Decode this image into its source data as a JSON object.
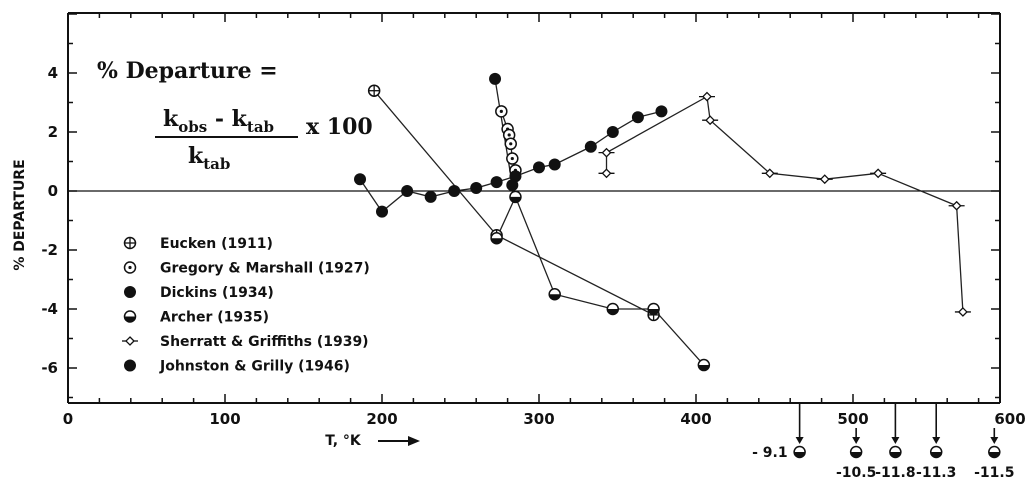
{
  "chart_data": {
    "type": "scatter",
    "title": "",
    "xlabel": "T, °K",
    "ylabel": "% DEPARTURE",
    "xlim": [
      0,
      600
    ],
    "ylim": [
      -7,
      6
    ],
    "xticks": [
      0,
      100,
      200,
      300,
      400,
      500,
      600
    ],
    "yticks": [
      4,
      2,
      0,
      -2,
      -4,
      -6
    ],
    "formula": {
      "lhs": "% Departure =",
      "numerator_k1": "k",
      "numerator_sub1": "obs",
      "minus": " - ",
      "numerator_k2": "k",
      "numerator_sub2": "tab",
      "denominator_k": "k",
      "denominator_sub": "tab",
      "multiplier": "x 100"
    },
    "series": [
      {
        "name": "Eucken (1911)",
        "marker": "crossed-circle",
        "x": [
          195,
          273,
          373
        ],
        "y": [
          3.4,
          -1.5,
          -4.2
        ]
      },
      {
        "name": "Gregory & Marshall (1927)",
        "marker": "dotted-circle",
        "x": [
          276,
          280,
          281,
          282,
          283,
          285
        ],
        "y": [
          2.7,
          2.1,
          1.9,
          1.6,
          1.1,
          0.7
        ]
      },
      {
        "name": "Dickins (1934)",
        "marker": "filled-circle",
        "x": [
          186,
          200,
          216,
          231,
          246,
          260,
          273,
          285,
          300,
          310,
          333,
          347,
          363,
          378
        ],
        "y": [
          0.4,
          -0.7,
          0.0,
          -0.2,
          0.0,
          0.1,
          0.3,
          0.5,
          0.8,
          0.9,
          1.5,
          2.0,
          2.5,
          2.7
        ]
      },
      {
        "name": "Archer (1935)",
        "marker": "half-filled-circle",
        "x": [
          273,
          285,
          310,
          347,
          373,
          405
        ],
        "y": [
          -1.6,
          -0.2,
          -3.5,
          -4.0,
          -4.0,
          -5.9
        ]
      },
      {
        "name": "Sherratt & Griffiths (1939)",
        "marker": "open-diamond",
        "x": [
          343,
          343,
          407,
          409,
          447,
          482,
          516,
          566,
          570
        ],
        "y": [
          0.6,
          1.3,
          3.2,
          2.4,
          0.6,
          0.4,
          0.6,
          -0.5,
          -4.1
        ]
      },
      {
        "name": "Johnston & Grilly (1946)",
        "marker": "filled-circle",
        "x": [
          283,
          272
        ],
        "y": [
          0.2,
          3.8
        ]
      }
    ],
    "off_scale": [
      {
        "x": 466,
        "label": "- 9.1"
      },
      {
        "x": 502,
        "label": "-10.5"
      },
      {
        "x": 527,
        "label": "-11.8"
      },
      {
        "x": 553,
        "label": "-11.3"
      },
      {
        "x": 590,
        "label": "-11.5"
      }
    ],
    "grid": false,
    "legend_position": "lower-left"
  }
}
